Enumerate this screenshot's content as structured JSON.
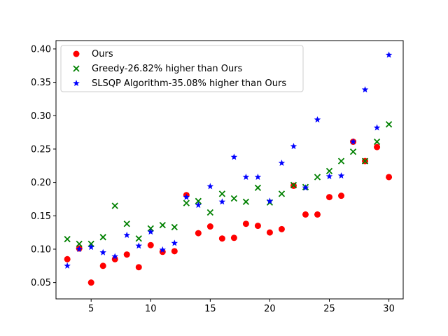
{
  "chart_data": {
    "type": "scatter",
    "title": "",
    "xlabel": "",
    "ylabel": "",
    "xlim": [
      2.05,
      31.2
    ],
    "ylim": [
      0.0255,
      0.4125
    ],
    "xticks": [
      5,
      10,
      15,
      20,
      25,
      30
    ],
    "xtick_labels": [
      "5",
      "10",
      "15",
      "20",
      "25",
      "30"
    ],
    "yticks": [
      0.05,
      0.1,
      0.15,
      0.2,
      0.25,
      0.3,
      0.35,
      0.4
    ],
    "ytick_labels": [
      "0.05",
      "0.10",
      "0.15",
      "0.20",
      "0.25",
      "0.30",
      "0.35",
      "0.40"
    ],
    "grid": false,
    "legend_position": "upper-left",
    "series": [
      {
        "name": "Ours",
        "marker": "circle",
        "color": "#ff0000",
        "x": [
          3,
          4,
          5,
          6,
          7,
          8,
          9,
          10,
          11,
          12,
          13,
          14,
          15,
          16,
          17,
          18,
          19,
          20,
          21,
          22,
          23,
          24,
          25,
          26,
          27,
          28,
          29,
          30
        ],
        "y": [
          0.085,
          0.101,
          0.05,
          0.075,
          0.085,
          0.092,
          0.073,
          0.106,
          0.096,
          0.097,
          0.181,
          0.124,
          0.134,
          0.116,
          0.117,
          0.138,
          0.135,
          0.125,
          0.13,
          0.195,
          0.152,
          0.152,
          0.178,
          0.18,
          0.261,
          0.232,
          0.253,
          0.208
        ]
      },
      {
        "name": "Greedy-26.82% higher than Ours",
        "marker": "x",
        "color": "#008000",
        "x": [
          3,
          4,
          5,
          6,
          7,
          8,
          9,
          10,
          11,
          12,
          13,
          14,
          15,
          16,
          17,
          18,
          19,
          20,
          21,
          22,
          23,
          24,
          25,
          26,
          27,
          28,
          29,
          30
        ],
        "y": [
          0.115,
          0.108,
          0.108,
          0.118,
          0.165,
          0.138,
          0.116,
          0.131,
          0.136,
          0.133,
          0.169,
          0.172,
          0.155,
          0.183,
          0.176,
          0.171,
          0.192,
          0.17,
          0.183,
          0.196,
          0.193,
          0.208,
          0.217,
          0.232,
          0.246,
          0.232,
          0.261,
          0.287
        ]
      },
      {
        "name": "SLSQP Algorithm-35.08% higher than Ours",
        "marker": "star",
        "color": "#0000ff",
        "x": [
          3,
          4,
          5,
          6,
          7,
          8,
          9,
          10,
          11,
          12,
          13,
          14,
          15,
          16,
          17,
          18,
          19,
          20,
          21,
          22,
          23,
          24,
          25,
          26,
          27,
          28,
          29,
          30
        ],
        "y": [
          0.075,
          0.1,
          0.103,
          0.095,
          0.089,
          0.121,
          0.105,
          0.126,
          0.099,
          0.109,
          0.178,
          0.166,
          0.194,
          0.171,
          0.238,
          0.208,
          0.208,
          0.172,
          0.229,
          0.254,
          0.192,
          0.294,
          0.209,
          0.21,
          0.261,
          0.339,
          0.282,
          0.391
        ]
      }
    ]
  }
}
